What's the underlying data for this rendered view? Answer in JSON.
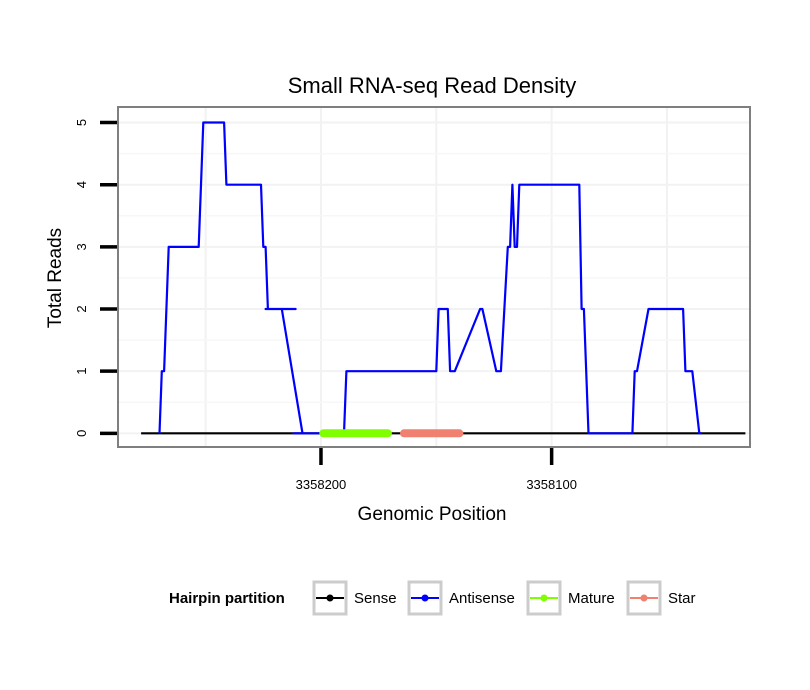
{
  "chart_data": {
    "type": "line",
    "title": "Small RNA-seq Read Density",
    "xlabel": "Genomic Position",
    "ylabel": "Total Reads",
    "xlim": [
      3358288,
      3358014
    ],
    "ylim": [
      -0.22,
      5.25
    ],
    "x_reversed": true,
    "grid": true,
    "x_ticks": [
      {
        "value": 3358200,
        "label": "3358200"
      },
      {
        "value": 3358100,
        "label": "3358100"
      }
    ],
    "y_ticks": [
      {
        "value": 0,
        "label": "0"
      },
      {
        "value": 1,
        "label": "1"
      },
      {
        "value": 2,
        "label": "2"
      },
      {
        "value": 3,
        "label": "3"
      },
      {
        "value": 4,
        "label": "4"
      },
      {
        "value": 5,
        "label": "5"
      }
    ],
    "series": [
      {
        "name": "Sense",
        "color": "#000000",
        "x": [
          3358278,
          3358016
        ],
        "y": [
          0,
          0
        ]
      },
      {
        "name": "Antisense",
        "color": "#0000ff",
        "x": [
          3358270,
          3358269,
          3358268,
          3358266,
          3358261,
          3358259,
          3358258,
          3358256,
          3358255,
          3358253,
          3358251,
          3358242,
          3358241,
          3358226,
          3358225,
          3358224,
          3358223,
          3358224,
          3358214,
          3358211,
          3358212,
          3358217,
          3358208,
          3358209,
          3358188,
          3358187,
          3358186,
          3358212,
          3358209,
          3358190,
          3358189,
          3358176,
          3358175,
          3358174,
          3358173,
          3358172,
          3358150,
          3358149,
          3358145,
          3358144,
          3358143,
          3358142,
          3358131,
          3358130,
          3358124,
          3358122,
          3358119,
          3358118,
          3358117,
          3358116,
          3358115,
          3358114,
          3358110,
          3358109,
          3358088,
          3358087,
          3358086,
          3358085,
          3358084,
          3358065,
          3358064,
          3358063,
          3358058,
          3358057,
          3358053,
          3358045,
          3358043,
          3358042,
          3358039,
          3358036,
          3358035
        ],
        "y": [
          0,
          1,
          1,
          3,
          3,
          3,
          3,
          3,
          3,
          3,
          5,
          5,
          4,
          4,
          3,
          3,
          2,
          2,
          2,
          2,
          2,
          2,
          0,
          0,
          0,
          0,
          0,
          0,
          0,
          0,
          1,
          1,
          1,
          1,
          1,
          1,
          1,
          2,
          2,
          1,
          1,
          1,
          2,
          2,
          1,
          1,
          3,
          3,
          4,
          3,
          3,
          4,
          4,
          4,
          4,
          2,
          2,
          1,
          0,
          0,
          1,
          1,
          2,
          2,
          2,
          2,
          2,
          1,
          1,
          0,
          0
        ]
      },
      {
        "name": "Mature",
        "color": "#7fff00",
        "x": [
          3358199,
          3358171
        ],
        "y": [
          0,
          0
        ]
      },
      {
        "name": "Star",
        "color": "#f08070",
        "x": [
          3358164,
          3358140
        ],
        "y": [
          0,
          0
        ]
      }
    ],
    "legend": {
      "title": "Hairpin partition",
      "position": "bottom",
      "entries": [
        {
          "label": "Sense",
          "color": "#000000"
        },
        {
          "label": "Antisense",
          "color": "#0000ff"
        },
        {
          "label": "Mature",
          "color": "#7fff00"
        },
        {
          "label": "Star",
          "color": "#f08070"
        }
      ]
    }
  }
}
